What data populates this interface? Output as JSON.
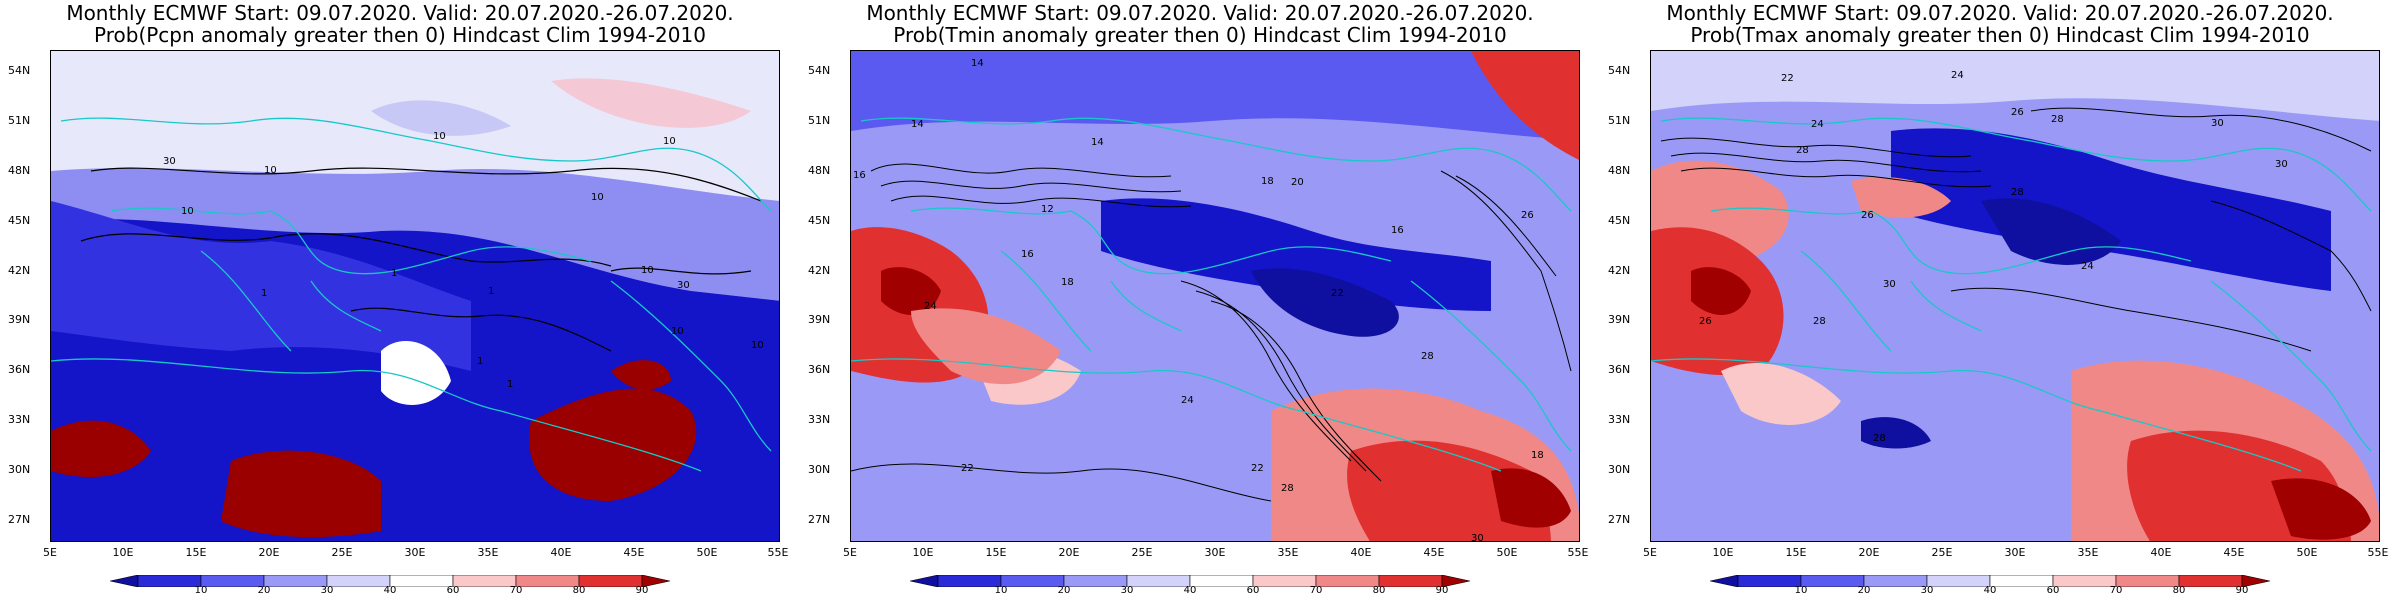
{
  "panels": [
    {
      "title_line1": "Monthly ECMWF Start: 09.07.2020. Valid: 20.07.2020.-26.07.2020.",
      "title_line2": "Prob(Pcpn anomaly greater then 0) Hindcast Clim 1994-2010",
      "contour_labels": [
        "10",
        "10",
        "10",
        "30",
        "10",
        "10",
        "1",
        "1",
        "1",
        "10",
        "30",
        "10",
        "1",
        "1",
        "10"
      ]
    },
    {
      "title_line1": "Monthly ECMWF Start: 09.07.2020. Valid: 20.07.2020.-26.07.2020.",
      "title_line2": "Prob(Tmin anomaly greater then 0) Hindcast Clim 1994-2010",
      "contour_labels": [
        "14",
        "14",
        "16",
        "14",
        "18",
        "12",
        "16",
        "18",
        "22",
        "20",
        "24",
        "28",
        "26",
        "22",
        "28",
        "30",
        "22",
        "24",
        "16",
        "18"
      ]
    },
    {
      "title_line1": "Monthly ECMWF Start: 09.07.2020. Valid: 20.07.2020.-26.07.2020.",
      "title_line2": "Prob(Tmax anomaly greater then 0) Hindcast Clim 1994-2010",
      "contour_labels": [
        "22",
        "24",
        "26",
        "28",
        "30",
        "24",
        "28",
        "26",
        "30",
        "24",
        "28",
        "30",
        "28",
        "26",
        "28"
      ]
    }
  ],
  "lat_ticks": [
    "54N",
    "51N",
    "48N",
    "45N",
    "42N",
    "39N",
    "36N",
    "33N",
    "30N",
    "27N"
  ],
  "lon_ticks": [
    "5E",
    "10E",
    "15E",
    "20E",
    "25E",
    "30E",
    "35E",
    "40E",
    "45E",
    "50E",
    "55E"
  ],
  "colorbar": {
    "labels": [
      "10",
      "20",
      "30",
      "40",
      "60",
      "70",
      "80",
      "90"
    ],
    "colors": [
      "#1010a0",
      "#2a2ad8",
      "#5a5af0",
      "#9a9af6",
      "#d2d2fa",
      "#ffffff",
      "#fac8c8",
      "#f08888",
      "#e03030",
      "#a00000"
    ]
  },
  "colors": {
    "coast": "#18c8c8",
    "contour": "#000000"
  }
}
